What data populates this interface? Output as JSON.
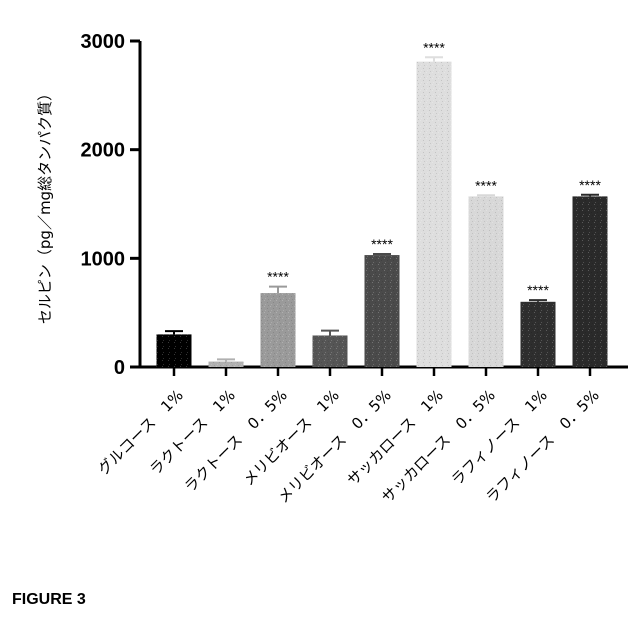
{
  "chart_data": {
    "type": "bar",
    "ylabel": "セルピン（pg／mg総タンパク質）",
    "ylim": [
      0,
      3000
    ],
    "yticks": [
      0,
      1000,
      2000,
      3000
    ],
    "categories": [
      "グルコース　1%",
      "ラクトース　1%",
      "ラクトース　0．5%",
      "メリビオース　1%",
      "メリビオース　0．5%",
      "サッカロース　1%",
      "サッカロース　0．5%",
      "ラフィノース　1%",
      "ラフィノース　0．5%"
    ],
    "values": [
      300,
      50,
      680,
      290,
      1030,
      2810,
      1570,
      600,
      1570
    ],
    "errors": [
      30,
      20,
      60,
      45,
      10,
      40,
      10,
      15,
      15
    ],
    "significance": [
      "",
      "",
      "****",
      "",
      "****",
      "****",
      "****",
      "****",
      "****"
    ],
    "bar_colors": [
      "#000000",
      "#b0b0b0",
      "#9a9a9a",
      "#555555",
      "#4a4a4a",
      "#dedede",
      "#d8d8d8",
      "#2e2e2e",
      "#2a2a2a"
    ],
    "grid": false
  },
  "figure_label": "FIGURE 3"
}
